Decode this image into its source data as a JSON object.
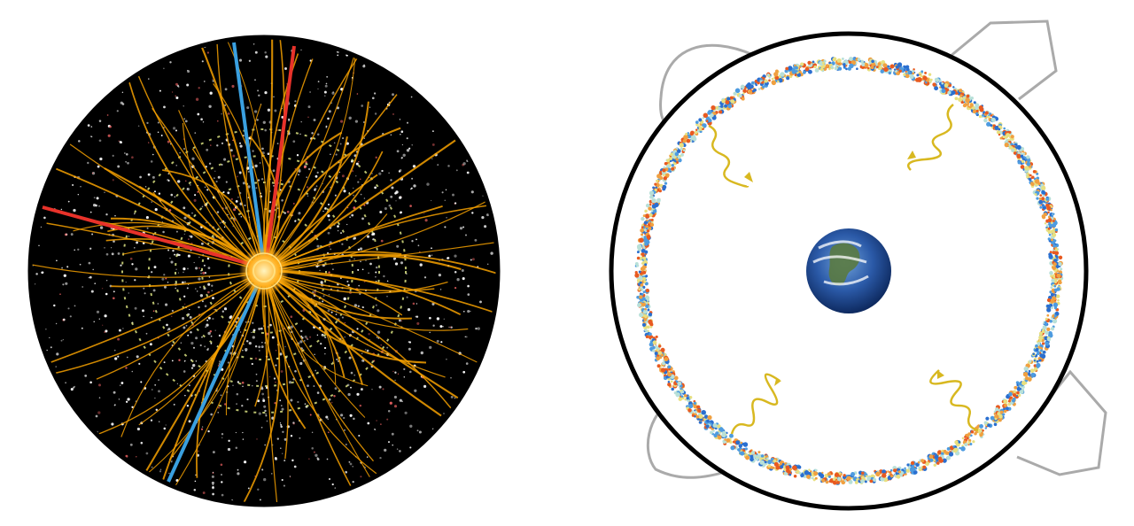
{
  "figure": {
    "left_panel": {
      "subject": "particle-collision-event-display",
      "colors": {
        "background": "#000000",
        "tracks": "#f5a000",
        "hits": "#ffffff",
        "muon_tracks": "#3aa0e0",
        "electron_tracks": "#e8322a",
        "detector_layers": "#e8f08a"
      }
    },
    "right_panel": {
      "subject": "cosmic-microwave-background-shell-around-earth",
      "colors": {
        "outer_ring": "#000000",
        "cmb_cold": "#2a6fd0",
        "cmb_mid": "#b8e0d8",
        "cmb_hot": "#e85a20",
        "photon_arrows": "#d8b820",
        "lobes": "#aaaaaa",
        "earth_ocean": "#2b5aa8"
      }
    }
  }
}
